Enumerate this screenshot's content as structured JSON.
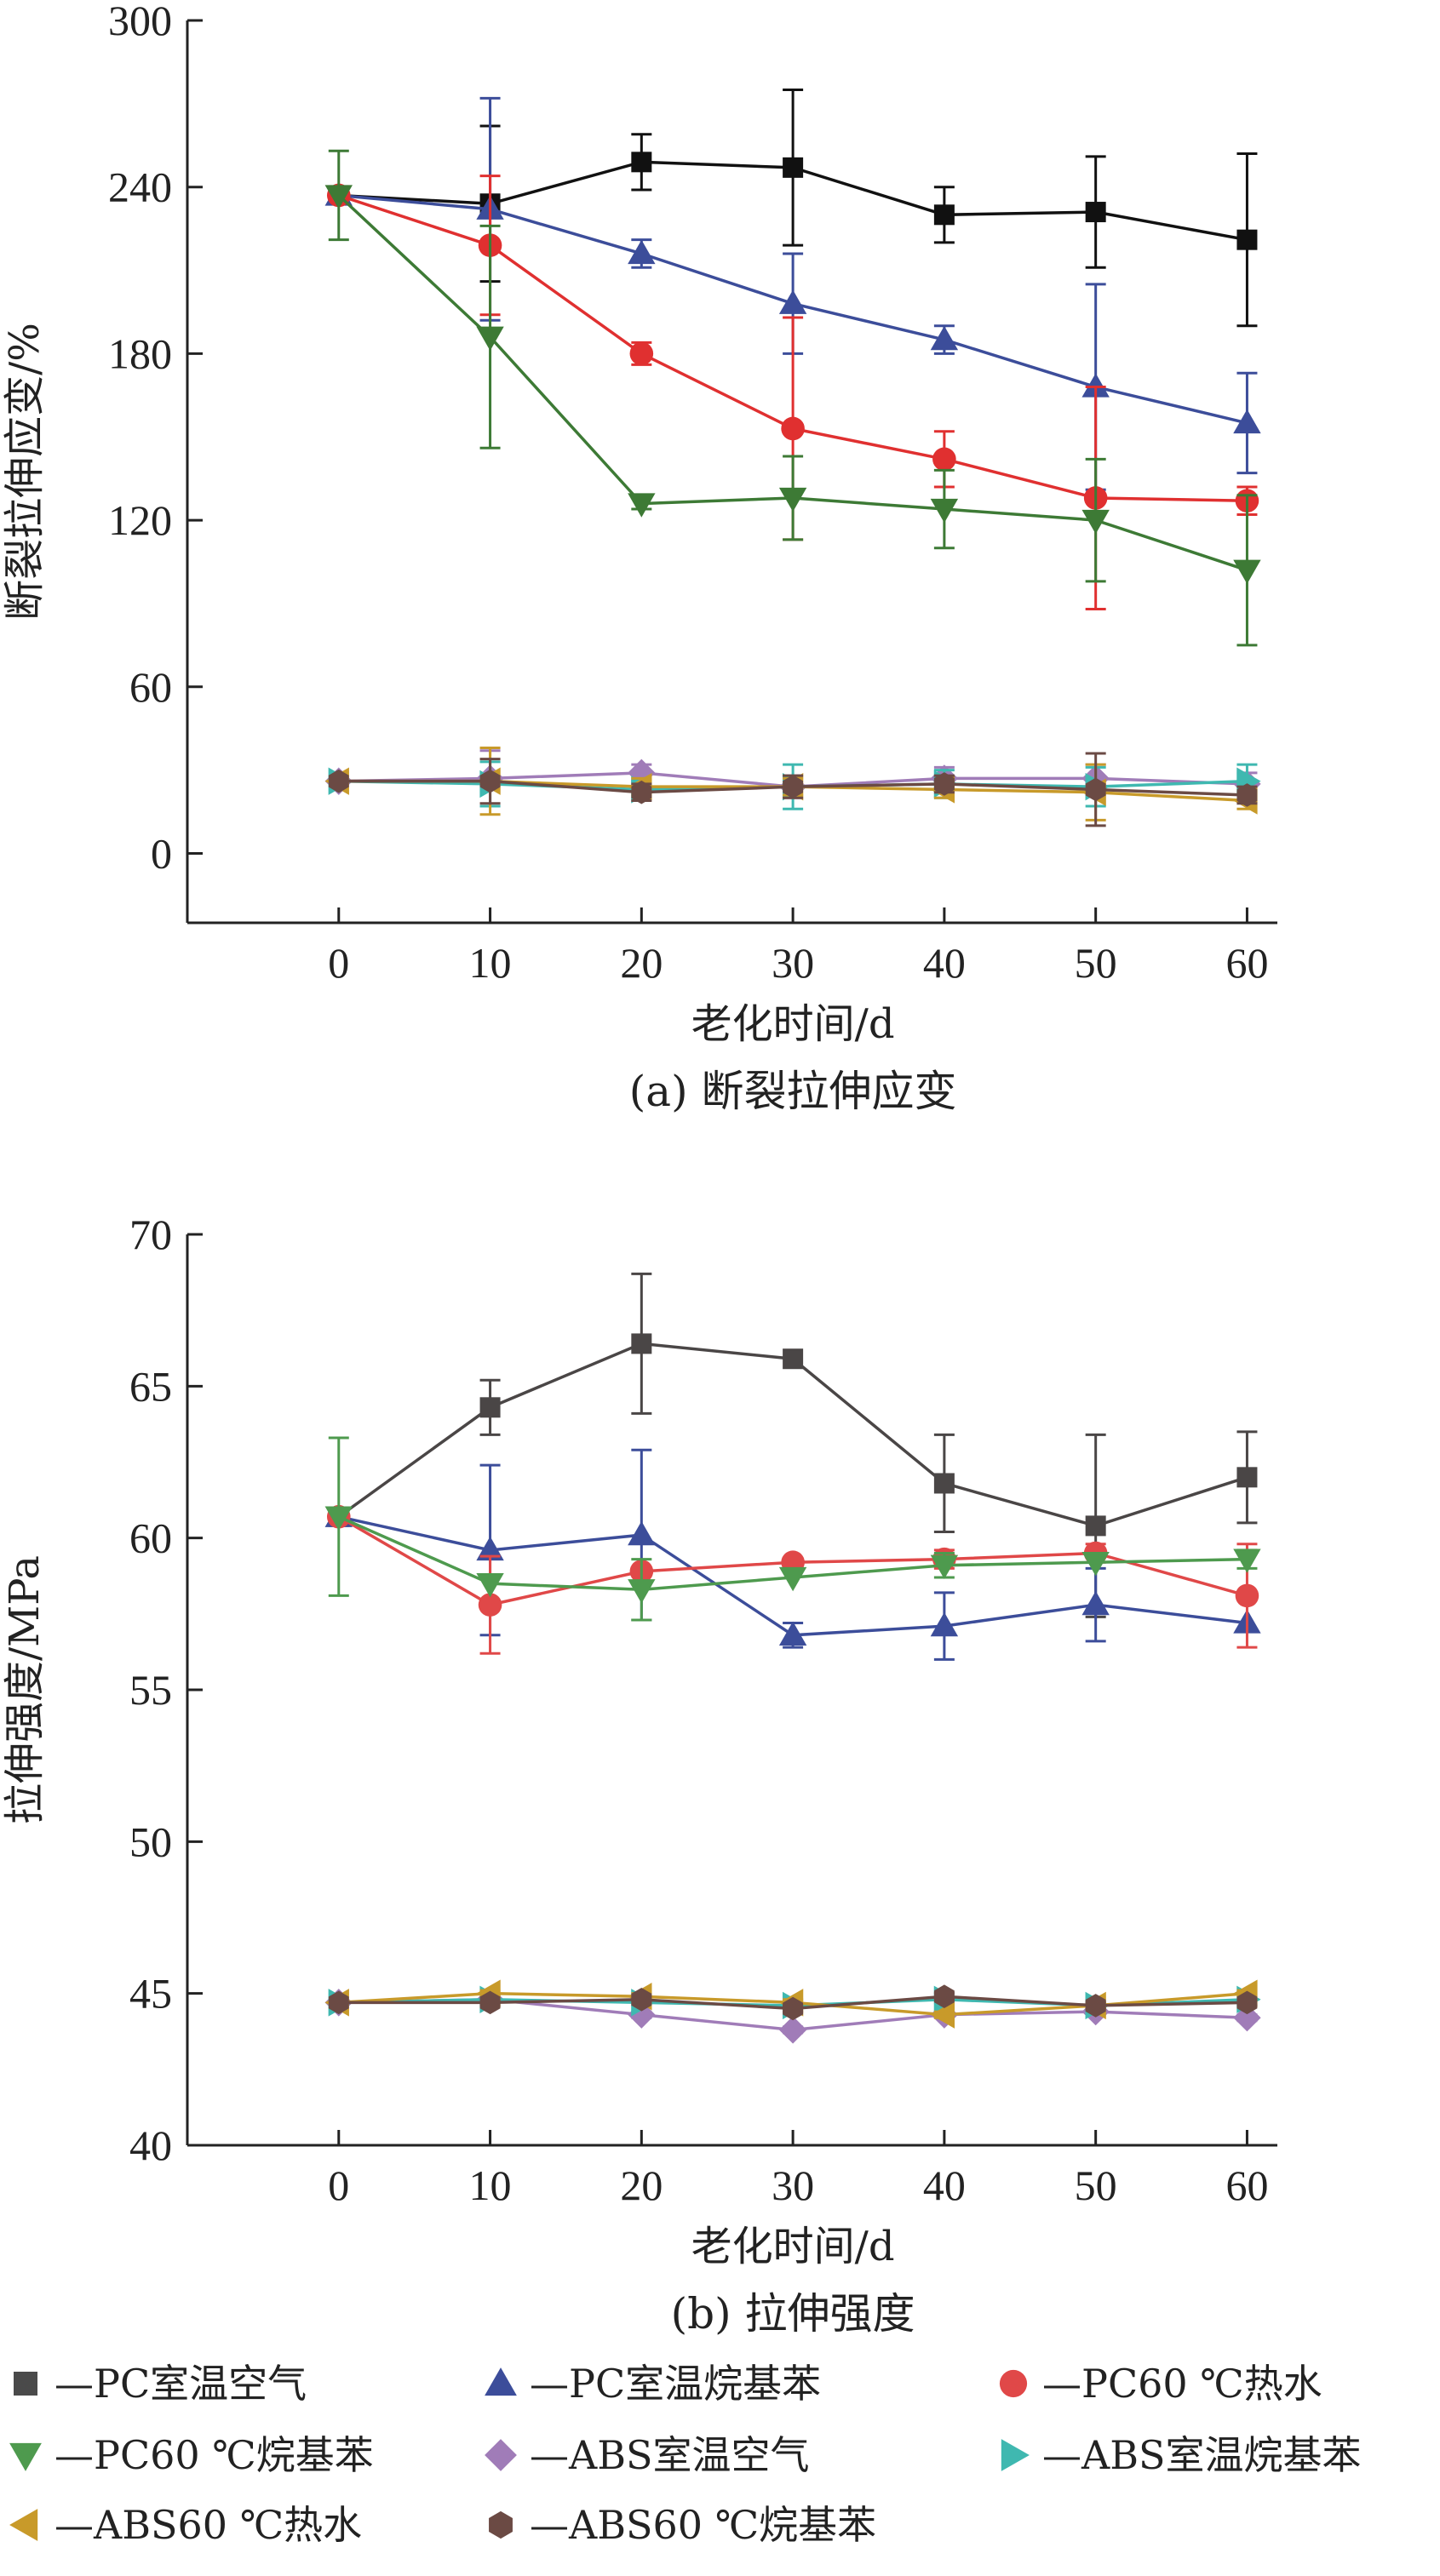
{
  "legend": [
    {
      "label": "—PC室温空气",
      "marker": "square",
      "color": "#4a4a4a"
    },
    {
      "label": "—PC室温烷基苯",
      "marker": "triangle-up",
      "color": "#3c4d9a"
    },
    {
      "label": "—PC60 ℃热水",
      "marker": "circle",
      "color": "#e04848"
    },
    {
      "label": "—PC60 ℃烷基苯",
      "marker": "triangle-down",
      "color": "#4e9a4e"
    },
    {
      "label": "—ABS室温空气",
      "marker": "diamond",
      "color": "#a07cb8"
    },
    {
      "label": "—ABS室温烷基苯",
      "marker": "triangle-right",
      "color": "#3fb8b0"
    },
    {
      "label": "—ABS60 ℃热水",
      "marker": "triangle-left",
      "color": "#c89a2a"
    },
    {
      "label": "—ABS60 ℃烷基苯",
      "marker": "hexagon",
      "color": "#6b4a44"
    }
  ],
  "chart_data": [
    {
      "type": "line",
      "caption": "(a) 断裂拉伸应变",
      "xlabel": "老化时间/d",
      "ylabel": "断裂拉伸应变/%",
      "x": [
        0,
        10,
        20,
        30,
        40,
        50,
        60
      ],
      "xlim": [
        -10,
        62
      ],
      "ylim": [
        -25,
        300
      ],
      "yticks": [
        0,
        60,
        120,
        180,
        240,
        300
      ],
      "xticks": [
        0,
        10,
        20,
        30,
        40,
        50,
        60
      ],
      "series": [
        {
          "name": "PC室温空气",
          "color": "#111111",
          "marker": "square",
          "values": [
            237,
            234,
            249,
            247,
            230,
            231,
            221
          ],
          "errors": [
            0,
            28,
            10,
            28,
            10,
            20,
            31
          ]
        },
        {
          "name": "PC室温烷基苯",
          "color": "#3c4d9a",
          "marker": "triangle-up",
          "values": [
            237,
            232,
            216,
            198,
            185,
            168,
            155
          ],
          "errors": [
            0,
            40,
            5,
            18,
            5,
            37,
            18
          ]
        },
        {
          "name": "PC60 ℃热水",
          "color": "#e03030",
          "marker": "circle",
          "values": [
            237,
            219,
            180,
            153,
            142,
            128,
            127
          ],
          "errors": [
            0,
            25,
            4,
            40,
            10,
            40,
            5
          ]
        },
        {
          "name": "PC60 ℃烷基苯",
          "color": "#3d7a35",
          "marker": "triangle-down",
          "values": [
            237,
            186,
            126,
            128,
            124,
            120,
            102
          ],
          "errors": [
            16,
            40,
            2,
            15,
            14,
            22,
            27
          ]
        },
        {
          "name": "ABS室温空气",
          "color": "#a07cb8",
          "marker": "diamond",
          "values": [
            26,
            27,
            29,
            24,
            27,
            27,
            25
          ],
          "errors": [
            0,
            10,
            3,
            4,
            4,
            5,
            4
          ]
        },
        {
          "name": "ABS室温烷基苯",
          "color": "#3fb8b0",
          "marker": "triangle-right",
          "values": [
            26,
            25,
            23,
            24,
            25,
            24,
            26
          ],
          "errors": [
            0,
            8,
            3,
            8,
            5,
            7,
            6
          ]
        },
        {
          "name": "ABS60 ℃热水",
          "color": "#c89a2a",
          "marker": "triangle-left",
          "values": [
            26,
            26,
            24,
            24,
            23,
            22,
            19
          ],
          "errors": [
            0,
            12,
            3,
            3,
            3,
            10,
            3
          ]
        },
        {
          "name": "ABS60 ℃烷基苯",
          "color": "#6b4a44",
          "marker": "hexagon",
          "values": [
            26,
            26,
            22,
            24,
            25,
            23,
            21
          ],
          "errors": [
            0,
            8,
            3,
            4,
            3,
            13,
            3
          ]
        }
      ]
    },
    {
      "type": "line",
      "caption": "(b) 拉伸强度",
      "xlabel": "老化时间/d",
      "ylabel": "拉伸强度/MPa",
      "x": [
        0,
        10,
        20,
        30,
        40,
        50,
        60
      ],
      "xlim": [
        -10,
        62
      ],
      "ylim": [
        40,
        70
      ],
      "yticks": [
        40,
        45,
        50,
        55,
        60,
        65,
        70
      ],
      "xticks": [
        0,
        10,
        20,
        30,
        40,
        50,
        60
      ],
      "series": [
        {
          "name": "PC室温空气",
          "color": "#4a4646",
          "marker": "square",
          "values": [
            60.7,
            64.3,
            66.4,
            65.9,
            61.8,
            60.4,
            62.0
          ],
          "errors": [
            0,
            0.9,
            2.3,
            0,
            1.6,
            3.0,
            1.5
          ]
        },
        {
          "name": "PC室温烷基苯",
          "color": "#3c4d9a",
          "marker": "triangle-up",
          "values": [
            60.7,
            59.6,
            60.1,
            56.8,
            57.1,
            57.8,
            57.2
          ],
          "errors": [
            0,
            2.8,
            2.8,
            0.4,
            1.1,
            1.2,
            0
          ]
        },
        {
          "name": "PC60 ℃热水",
          "color": "#e04848",
          "marker": "circle",
          "values": [
            60.7,
            57.8,
            58.9,
            59.2,
            59.3,
            59.5,
            58.1
          ],
          "errors": [
            0,
            1.6,
            0,
            0,
            0.3,
            0.3,
            1.7
          ]
        },
        {
          "name": "PC60 ℃烷基苯",
          "color": "#4e9a4e",
          "marker": "triangle-down",
          "values": [
            60.7,
            58.5,
            58.3,
            58.7,
            59.1,
            59.2,
            59.3
          ],
          "errors": [
            2.6,
            0,
            1.0,
            0,
            0.4,
            0,
            0.3
          ]
        },
        {
          "name": "ABS室温空气",
          "color": "#a07cb8",
          "marker": "diamond",
          "values": [
            44.7,
            44.8,
            44.3,
            43.8,
            44.3,
            44.4,
            44.2
          ],
          "errors": [
            0,
            0.1,
            0.1,
            0.1,
            0.1,
            0.1,
            0.1
          ]
        },
        {
          "name": "ABS室温烷基苯",
          "color": "#3fb8b0",
          "marker": "triangle-right",
          "values": [
            44.7,
            44.8,
            44.7,
            44.6,
            44.8,
            44.6,
            44.8
          ],
          "errors": [
            0,
            0.1,
            0.1,
            0.1,
            0.1,
            0.1,
            0.1
          ]
        },
        {
          "name": "ABS60 ℃热水",
          "color": "#c89a2a",
          "marker": "triangle-left",
          "values": [
            44.7,
            45.0,
            44.9,
            44.7,
            44.3,
            44.6,
            45.0
          ],
          "errors": [
            0,
            0.1,
            0.1,
            0.1,
            0.1,
            0.1,
            0.1
          ]
        },
        {
          "name": "ABS60 ℃烷基苯",
          "color": "#6b4a44",
          "marker": "hexagon",
          "values": [
            44.7,
            44.7,
            44.8,
            44.5,
            44.9,
            44.6,
            44.7
          ],
          "errors": [
            0,
            0.1,
            0.1,
            0.1,
            0.1,
            0.1,
            0.1
          ]
        }
      ]
    }
  ]
}
